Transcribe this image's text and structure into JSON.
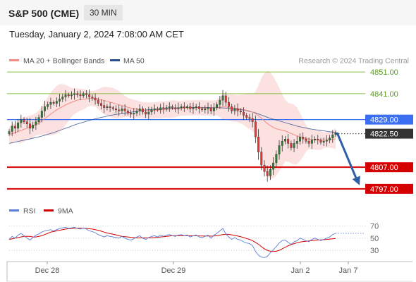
{
  "header": {
    "symbol": "S&P 500 (CME)",
    "timeframe": "30 MIN"
  },
  "datetime": "Tuesday, January 2, 2024 7:08:00 AM CET",
  "legend": {
    "items": [
      {
        "label": "MA 20 + Bollinger Bands",
        "color": "#f28b82"
      },
      {
        "label": "MA 50",
        "color": "#2a4d8f"
      }
    ],
    "copyright": "Research © 2024 Trading Central"
  },
  "colors": {
    "band_fill": "#fbdcdc",
    "up_candle": "#2e7d32",
    "down_candle": "#e53935",
    "ma20": "#f28b82",
    "ma50": "#2a4d8f",
    "resistance": "#8bc34a",
    "current": "#3b6ef0",
    "support": "#d50000",
    "arrow": "#2f5ea8",
    "rsi": "#5b7fd8",
    "rsi_ma": "#d50000"
  },
  "chart_data": [
    {
      "type": "candlestick",
      "ylim": [
        4795,
        4853
      ],
      "x_labels": [
        "Dec 28",
        "Dec 29",
        "Jan 2",
        "Jan 7"
      ],
      "levels": [
        {
          "value": 4851.0,
          "label": "4851.00",
          "kind": "resistance"
        },
        {
          "value": 4841.0,
          "label": "4841.00",
          "kind": "resistance"
        },
        {
          "value": 4829.0,
          "label": "4829.00",
          "kind": "pivot"
        },
        {
          "value": 4807.0,
          "label": "4807.00",
          "kind": "support"
        },
        {
          "value": 4797.0,
          "label": "4797.00",
          "kind": "support"
        }
      ],
      "last_price": {
        "value": 4822.5,
        "label": "4822.50"
      },
      "forecast": {
        "from": 4823,
        "to": 4798
      },
      "closes": [
        4823.5,
        4826,
        4825,
        4827.5,
        4829,
        4828,
        4827,
        4825,
        4826.5,
        4828,
        4830,
        4833,
        4835,
        4836,
        4837,
        4836.5,
        4837.5,
        4838.5,
        4839.5,
        4840.5,
        4840,
        4840.5,
        4841,
        4840.5,
        4840,
        4841,
        4840.5,
        4839.5,
        4839,
        4838,
        4836.5,
        4835.5,
        4834.5,
        4835,
        4834.5,
        4834,
        4833.5,
        4833,
        4834,
        4833,
        4832,
        4831.5,
        4832,
        4833,
        4834,
        4832.5,
        4831.5,
        4832.5,
        4833.5,
        4834,
        4833.5,
        4834.5,
        4834,
        4834.5,
        4835,
        4834.5,
        4834,
        4834.5,
        4835,
        4834.5,
        4835,
        4834,
        4834.5,
        4835,
        4834,
        4833.5,
        4834,
        4834.5,
        4833,
        4834.5,
        4836,
        4838,
        4840,
        4837,
        4835,
        4833,
        4834,
        4833,
        4832.5,
        4831,
        4830,
        4829.5,
        4828,
        4821,
        4814,
        4808,
        4805,
        4803,
        4806,
        4809,
        4813,
        4817,
        4819,
        4820,
        4818,
        4816,
        4818,
        4819,
        4821,
        4820,
        4819,
        4818,
        4819.5,
        4820,
        4819.5,
        4818.5,
        4819,
        4819.5,
        4820.5,
        4822,
        4823
      ],
      "ma20": [
        4822,
        4822.5,
        4823,
        4823.5,
        4824,
        4824.5,
        4825,
        4825.5,
        4826,
        4826.8,
        4827.5,
        4828.5,
        4829.5,
        4830.5,
        4831.5,
        4832.5,
        4833.5,
        4834.3,
        4835,
        4835.8,
        4836.4,
        4837,
        4837.5,
        4838,
        4838.2,
        4838.4,
        4838.6,
        4838.8,
        4838.8,
        4838.7,
        4838.5,
        4838.2,
        4837.8,
        4837.5,
        4837.1,
        4836.7,
        4836.3,
        4835.9,
        4835.5,
        4835.1,
        4834.7,
        4834.3,
        4834,
        4833.8,
        4833.6,
        4833.4,
        4833.3,
        4833.2,
        4833.2,
        4833.3,
        4833.4,
        4833.5,
        4833.6,
        4833.7,
        4833.8,
        4833.9,
        4834,
        4834.1,
        4834.2,
        4834.3,
        4834.4,
        4834.4,
        4834.4,
        4834.5,
        4834.5,
        4834.4,
        4834.4,
        4834.4,
        4834.3,
        4834.4,
        4834.5,
        4834.7,
        4834.9,
        4834.8,
        4834.6,
        4834.4,
        4834.3,
        4834.1,
        4833.9,
        4833.6,
        4833.3,
        4833,
        4832.5,
        4831.8,
        4830.8,
        4829.6,
        4828.4,
        4827.2,
        4826.2,
        4825.4,
        4824.8,
        4824.4,
        4824.1,
        4823.8,
        4823.2,
        4822.6,
        4822,
        4821.5,
        4821,
        4820.6,
        4820.3,
        4820,
        4819.8,
        4819.7,
        4819.6,
        4819.5,
        4819.5,
        4819.6,
        4819.7,
        4819.9,
        4820.2
      ],
      "ma50": [
        4818,
        4818.3,
        4818.6,
        4818.9,
        4819.2,
        4819.5,
        4819.8,
        4820.1,
        4820.4,
        4820.7,
        4821,
        4821.4,
        4821.8,
        4822.2,
        4822.6,
        4823,
        4823.5,
        4824,
        4824.5,
        4825,
        4825.5,
        4826,
        4826.5,
        4827,
        4827.4,
        4827.8,
        4828.2,
        4828.6,
        4829,
        4829.4,
        4829.7,
        4830,
        4830.3,
        4830.6,
        4830.9,
        4831.2,
        4831.4,
        4831.6,
        4831.8,
        4832,
        4832.2,
        4832.4,
        4832.6,
        4832.8,
        4833,
        4833.2,
        4833.4,
        4833.6,
        4833.7,
        4833.8,
        4833.9,
        4834,
        4834.1,
        4834.2,
        4834.3,
        4834.3,
        4834.4,
        4834.4,
        4834.5,
        4834.5,
        4834.5,
        4834.6,
        4834.6,
        4834.6,
        4834.6,
        4834.6,
        4834.6,
        4834.6,
        4834.5,
        4834.5,
        4834.5,
        4834.4,
        4834.4,
        4834.3,
        4834.2,
        4834.1,
        4834,
        4833.8,
        4833.6,
        4833.4,
        4833.1,
        4832.8,
        4832.5,
        4832.1,
        4831.6,
        4831.1,
        4830.6,
        4830.1,
        4829.6,
        4829.2,
        4828.8,
        4828.4,
        4828,
        4827.6,
        4827.2,
        4826.8,
        4826.4,
        4826,
        4825.7,
        4825.4,
        4825.1,
        4824.8,
        4824.6,
        4824.4,
        4824.2,
        4824,
        4823.8,
        4823.6,
        4823.4,
        4823.2,
        4823
      ]
    },
    {
      "type": "line",
      "title": "RSI",
      "ylim": [
        15,
        80
      ],
      "y_ticks": [
        70,
        50,
        30
      ],
      "series": [
        {
          "name": "RSI",
          "values": [
            48,
            53,
            50,
            55,
            58,
            54,
            50,
            47,
            51,
            55,
            57,
            60,
            62,
            63,
            64,
            62,
            64,
            66,
            67,
            68,
            66,
            67,
            68,
            66,
            65,
            67,
            65,
            62,
            61,
            59,
            56,
            54,
            52,
            54,
            53,
            52,
            51,
            50,
            53,
            50,
            48,
            47,
            49,
            52,
            54,
            50,
            48,
            51,
            53,
            54,
            52,
            55,
            53,
            55,
            56,
            54,
            53,
            55,
            56,
            54,
            55,
            52,
            54,
            55,
            52,
            51,
            53,
            55,
            50,
            55,
            58,
            62,
            66,
            57,
            52,
            48,
            51,
            48,
            47,
            44,
            42,
            41,
            38,
            28,
            22,
            19,
            18,
            20,
            26,
            31,
            36,
            42,
            46,
            47,
            43,
            40,
            44,
            46,
            50,
            48,
            46,
            44,
            48,
            50,
            48,
            46,
            48,
            50,
            52,
            56,
            58
          ]
        },
        {
          "name": "9MA",
          "values": [
            48,
            49,
            50,
            51,
            52,
            53,
            53,
            53,
            52,
            52,
            53,
            54,
            56,
            58,
            60,
            61,
            62,
            63,
            64,
            65,
            65.5,
            66,
            66.5,
            66.5,
            66.5,
            66.5,
            66,
            65.5,
            65,
            64,
            63,
            61.5,
            60,
            58.5,
            57.5,
            56.5,
            55.5,
            54,
            53,
            52.5,
            52,
            51.5,
            51,
            50.5,
            50.5,
            50.5,
            50.5,
            50.5,
            50.5,
            51,
            51.5,
            52,
            52.5,
            53,
            53.5,
            54,
            54,
            54,
            54,
            54,
            54,
            54,
            54,
            54,
            53.8,
            53.6,
            53.5,
            53.5,
            53.4,
            53.5,
            54,
            55,
            56,
            56.5,
            56.3,
            55.5,
            54.5,
            53.5,
            52.5,
            51,
            49.5,
            48,
            46,
            43,
            40,
            36,
            32.5,
            30,
            28.5,
            28,
            28.5,
            30,
            32.5,
            35,
            37.5,
            39.5,
            41,
            42.5,
            43.5,
            44.5,
            45,
            45.5,
            46,
            46.5,
            47,
            47.2,
            47.5,
            48,
            48.5,
            49,
            49.5
          ]
        }
      ]
    }
  ]
}
